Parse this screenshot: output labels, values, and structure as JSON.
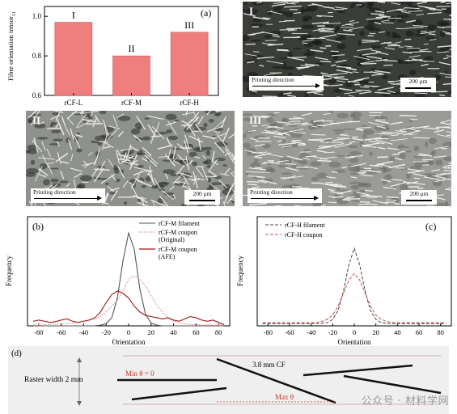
{
  "panel_a": {
    "label": "(a)",
    "ylabel": "Fibre orientation tensor",
    "ylabel_sub": "11",
    "yticks": [
      "1.0",
      "0.8",
      "0.6"
    ],
    "bar_color": "#ef7f7f"
  },
  "chart_data": [
    {
      "type": "bar",
      "title": "",
      "xlabel": "",
      "ylabel": "Fibre orientation tensor 11",
      "categories": [
        "rCF-L",
        "rCF-M",
        "rCF-H"
      ],
      "bar_labels": [
        "I",
        "II",
        "III"
      ],
      "values": [
        0.97,
        0.8,
        0.92
      ],
      "ylim": [
        0.6,
        1.05
      ]
    },
    {
      "type": "line",
      "xlabel": "Orientation",
      "ylabel": "Frequency",
      "xlim": [
        -90,
        90
      ],
      "x": [
        -85,
        -80,
        -75,
        -70,
        -65,
        -60,
        -55,
        -50,
        -45,
        -40,
        -35,
        -30,
        -25,
        -20,
        -15,
        -10,
        -5,
        0,
        5,
        10,
        15,
        20,
        25,
        30,
        35,
        40,
        45,
        50,
        55,
        60,
        65,
        70,
        75,
        80,
        85
      ],
      "series": [
        {
          "name": "rCF-M filament",
          "style": "solid",
          "color": "#555555",
          "values": [
            0.0,
            0.0,
            0.0,
            0.0,
            0.0,
            0.0,
            0.0,
            0.0,
            0.0,
            0.0,
            0.0,
            0.0,
            0.003,
            0.01,
            0.035,
            0.12,
            0.28,
            0.4,
            0.33,
            0.16,
            0.05,
            0.012,
            0.003,
            0.0,
            0.0,
            0.0,
            0.0,
            0.0,
            0.0,
            0.0,
            0.0,
            0.0,
            0.0,
            0.0,
            0.0
          ]
        },
        {
          "name": "rCF-M coupon",
          "name_line2": "(Original)",
          "style": "dotted",
          "color": "#d98080",
          "values": [
            0.003,
            0.004,
            0.005,
            0.006,
            0.007,
            0.008,
            0.01,
            0.012,
            0.015,
            0.02,
            0.025,
            0.03,
            0.04,
            0.06,
            0.085,
            0.11,
            0.15,
            0.2,
            0.215,
            0.2,
            0.17,
            0.13,
            0.09,
            0.06,
            0.035,
            0.02,
            0.012,
            0.008,
            0.006,
            0.005,
            0.004,
            0.004,
            0.003,
            0.003,
            0.003
          ]
        },
        {
          "name": "rCF-M coupon",
          "name_line2": "(AFE)",
          "style": "solid",
          "color": "#a01818",
          "values": [
            0.02,
            0.025,
            0.02,
            0.015,
            0.018,
            0.025,
            0.03,
            0.02,
            0.015,
            0.02,
            0.025,
            0.035,
            0.06,
            0.1,
            0.135,
            0.15,
            0.14,
            0.12,
            0.085,
            0.06,
            0.045,
            0.04,
            0.035,
            0.03,
            0.035,
            0.025,
            0.02,
            0.03,
            0.04,
            0.035,
            0.025,
            0.02,
            0.025,
            0.015,
            0.005
          ]
        }
      ]
    },
    {
      "type": "line",
      "xlabel": "Orientation",
      "ylabel": "Frequency",
      "xlim": [
        -90,
        90
      ],
      "x": [
        -85,
        -80,
        -75,
        -70,
        -65,
        -60,
        -55,
        -50,
        -45,
        -40,
        -35,
        -30,
        -25,
        -20,
        -15,
        -10,
        -5,
        0,
        5,
        10,
        15,
        20,
        25,
        30,
        35,
        40,
        45,
        50,
        55,
        60,
        65,
        70,
        75,
        80,
        85
      ],
      "series": [
        {
          "name": "rCF-H filament",
          "style": "dashed",
          "color": "#444444",
          "values": [
            0.01,
            0.01,
            0.01,
            0.01,
            0.01,
            0.01,
            0.01,
            0.01,
            0.01,
            0.01,
            0.01,
            0.012,
            0.015,
            0.03,
            0.07,
            0.16,
            0.28,
            0.355,
            0.28,
            0.16,
            0.07,
            0.03,
            0.015,
            0.012,
            0.01,
            0.01,
            0.01,
            0.01,
            0.01,
            0.01,
            0.01,
            0.01,
            0.01,
            0.01,
            0.01
          ]
        },
        {
          "name": "rCF-H coupon",
          "style": "dashed",
          "color": "#c85050",
          "values": [
            0.015,
            0.015,
            0.015,
            0.015,
            0.015,
            0.015,
            0.015,
            0.015,
            0.015,
            0.015,
            0.016,
            0.02,
            0.03,
            0.05,
            0.09,
            0.15,
            0.21,
            0.24,
            0.21,
            0.15,
            0.09,
            0.05,
            0.03,
            0.02,
            0.016,
            0.015,
            0.015,
            0.015,
            0.015,
            0.015,
            0.015,
            0.015,
            0.015,
            0.015,
            0.015
          ]
        }
      ]
    }
  ],
  "micro_panels": [
    {
      "id": "I",
      "label": "I",
      "direction": "Printing direction",
      "scale": "200 μm",
      "style": "dark-aligned"
    },
    {
      "id": "II",
      "label": "II",
      "direction": "Printing direction",
      "scale": "200 μm",
      "style": "random"
    },
    {
      "id": "III",
      "label": "III",
      "direction": "Printing direction",
      "scale": "200 μm",
      "style": "light-aligned"
    }
  ],
  "panel_b": {
    "label": "(b)",
    "xticks": [
      "-80",
      "-60",
      "-40",
      "-20",
      "0",
      "20",
      "40",
      "60",
      "80"
    ]
  },
  "panel_c": {
    "label": "(c)",
    "xticks": [
      "-80",
      "-60",
      "-40",
      "-20",
      "0",
      "20",
      "40",
      "60",
      "80"
    ]
  },
  "panel_d": {
    "label": "(d)",
    "raster": "Raster width 2 mm",
    "min_label": "Min θ = 0",
    "max_label": "Max θ",
    "cf_label": "3.8 mm CF",
    "min_color": "#c0392b",
    "max_color": "#c0392b"
  },
  "watermark": "公众号 · 材料学网"
}
